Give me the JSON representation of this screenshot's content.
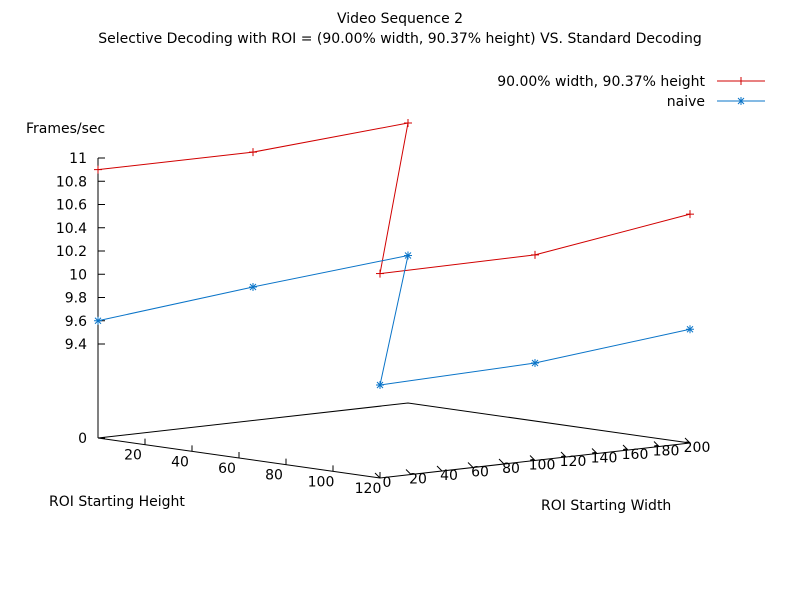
{
  "chart_data": {
    "type": "line",
    "title": "Video Sequence 2",
    "subtitle": "Selective Decoding with ROI = (90.00% width, 90.37% height) VS. Standard Decoding",
    "zlabel": "Frames/sec",
    "xlabel": "ROI Starting Height",
    "ylabel": "ROI Starting Width",
    "legend_position": "top-right",
    "grid": false,
    "z_ticks": [
      "0",
      "9.4",
      "9.6",
      "9.8",
      "10",
      "10.2",
      "10.4",
      "10.6",
      "10.8",
      "11"
    ],
    "height_ticks": [
      "20",
      "40",
      "60",
      "80",
      "100",
      "120"
    ],
    "width_ticks": [
      "0",
      "20",
      "40",
      "60",
      "80",
      "100",
      "120",
      "140",
      "160",
      "180",
      "200"
    ],
    "series": [
      {
        "name": "90.00% width, 90.37% height",
        "color": "#d10000",
        "marker": "plus",
        "points": [
          {
            "height": 0,
            "width": 0,
            "fps": 10.9
          },
          {
            "height": 0,
            "width": 100,
            "fps": 10.9
          },
          {
            "height": 0,
            "width": 200,
            "fps": 11.0
          },
          {
            "height": 120,
            "width": 0,
            "fps": 10.35
          },
          {
            "height": 120,
            "width": 100,
            "fps": 10.36
          },
          {
            "height": 120,
            "width": 200,
            "fps": 10.56
          }
        ]
      },
      {
        "name": "naive",
        "color": "#0a74c8",
        "marker": "star",
        "points": [
          {
            "height": 0,
            "width": 0,
            "fps": 9.6
          },
          {
            "height": 0,
            "width": 100,
            "fps": 9.74
          },
          {
            "height": 0,
            "width": 200,
            "fps": 9.86
          },
          {
            "height": 120,
            "width": 0,
            "fps": 9.3
          },
          {
            "height": 120,
            "width": 100,
            "fps": 9.43
          },
          {
            "height": 120,
            "width": 200,
            "fps": 9.57
          }
        ]
      }
    ]
  }
}
